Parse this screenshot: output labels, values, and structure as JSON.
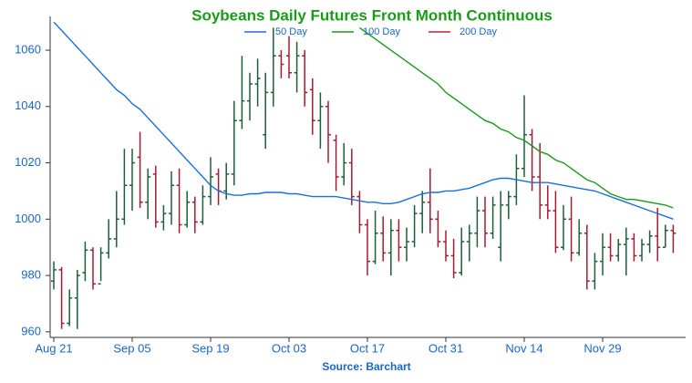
{
  "chart_data": {
    "type": "ohlc",
    "title": "Soybeans Daily Futures Front Month Continuous",
    "source": "Source: Barchart",
    "up_color": "#1e5e3a",
    "down_color": "#a51c30",
    "legend": "top",
    "grid": false,
    "categories": [
      "Aug 21",
      null,
      null,
      null,
      null,
      null,
      null,
      null,
      null,
      null,
      "Sep 05",
      null,
      null,
      null,
      null,
      null,
      null,
      null,
      null,
      null,
      "Sep 19",
      null,
      null,
      null,
      null,
      null,
      null,
      null,
      null,
      null,
      "Oct 03",
      null,
      null,
      null,
      null,
      null,
      null,
      null,
      null,
      null,
      "Oct 17",
      null,
      null,
      null,
      null,
      null,
      null,
      null,
      null,
      null,
      "Oct 31",
      null,
      null,
      null,
      null,
      null,
      null,
      null,
      null,
      null,
      "Nov 14",
      null,
      null,
      null,
      null,
      null,
      null,
      null,
      null,
      null,
      "Nov 29",
      null,
      null,
      null,
      null,
      null,
      null,
      null,
      null,
      null
    ],
    "open": [
      978,
      982,
      963,
      972,
      981,
      989,
      977,
      988,
      993,
      1000,
      1012,
      1022,
      1006,
      1016,
      999,
      1002,
      1012,
      998,
      1006,
      999,
      1008,
      1016,
      1010,
      1016,
      1035,
      1042,
      1048,
      1030,
      1045,
      1058,
      1058,
      1052,
      1058,
      1046,
      1035,
      1040,
      1028,
      1015,
      1020,
      1008,
      998,
      985,
      995,
      988,
      996,
      990,
      992,
      1002,
      1006,
      1000,
      992,
      987,
      981,
      992,
      995,
      1003,
      995,
      990,
      1005,
      1008,
      1018,
      1030,
      1015,
      1005,
      1003,
      990,
      1000,
      988,
      995,
      978,
      985,
      990,
      987,
      991,
      993,
      987,
      991,
      994,
      990,
      996
    ],
    "high": [
      985,
      983,
      975,
      982,
      992,
      990,
      990,
      1000,
      1010,
      1025,
      1025,
      1031,
      1018,
      1019,
      1005,
      1017,
      1018,
      1010,
      1008,
      1012,
      1022,
      1018,
      1020,
      1042,
      1058,
      1052,
      1057,
      1052,
      1068,
      1060,
      1065,
      1063,
      1060,
      1050,
      1045,
      1042,
      1030,
      1027,
      1025,
      1010,
      1000,
      1003,
      1001,
      1000,
      1000,
      997,
      1005,
      1010,
      1018,
      1003,
      996,
      993,
      997,
      998,
      1008,
      1008,
      1008,
      1010,
      1010,
      1023,
      1044,
      1032,
      1027,
      1012,
      1010,
      1005,
      1008,
      1000,
      998,
      988,
      995,
      995,
      993,
      997,
      995,
      993,
      996,
      1004,
      998,
      998
    ],
    "low": [
      975,
      961,
      962,
      961,
      978,
      975,
      978,
      986,
      990,
      998,
      1003,
      1004,
      1000,
      997,
      996,
      998,
      995,
      997,
      995,
      998,
      1005,
      1005,
      1007,
      1012,
      1032,
      1035,
      1040,
      1025,
      1040,
      1050,
      1050,
      1045,
      1040,
      1030,
      1025,
      1020,
      1010,
      1012,
      1005,
      995,
      980,
      984,
      985,
      980,
      985,
      985,
      990,
      995,
      995,
      990,
      985,
      979,
      980,
      985,
      990,
      990,
      993,
      985,
      1000,
      1005,
      1015,
      1010,
      1000,
      1000,
      988,
      989,
      985,
      987,
      975,
      975,
      980,
      985,
      985,
      980,
      985,
      985,
      988,
      985,
      990,
      988
    ],
    "close": [
      982,
      963,
      972,
      980,
      989,
      977,
      988,
      993,
      1000,
      1012,
      1020,
      1006,
      1015,
      999,
      1002,
      1012,
      998,
      1006,
      999,
      1008,
      1015,
      1010,
      1016,
      1035,
      1042,
      1048,
      1050,
      1045,
      1058,
      1055,
      1052,
      1058,
      1045,
      1035,
      1040,
      1030,
      1015,
      1020,
      1008,
      998,
      985,
      995,
      988,
      996,
      990,
      992,
      1002,
      1006,
      1000,
      992,
      987,
      981,
      992,
      995,
      1003,
      995,
      1005,
      1005,
      1008,
      1018,
      1030,
      1015,
      1005,
      1003,
      990,
      1000,
      988,
      995,
      978,
      985,
      990,
      987,
      991,
      993,
      987,
      991,
      994,
      990,
      996,
      995
    ],
    "series": [
      {
        "name": "50 Day",
        "color": "#1a6fe0",
        "values": [
          1070,
          1067,
          1064,
          1061,
          1058,
          1055,
          1052,
          1049,
          1046,
          1044,
          1041,
          1039,
          1036,
          1033,
          1030,
          1027,
          1024,
          1021,
          1018,
          1015,
          1012,
          1010,
          1009,
          1008.5,
          1008.5,
          1009,
          1009,
          1009.5,
          1009.5,
          1009.5,
          1009,
          1009,
          1008.5,
          1008,
          1008,
          1008,
          1008,
          1007.5,
          1007,
          1006.5,
          1006,
          1006,
          1005.5,
          1005.5,
          1006,
          1007,
          1008,
          1009,
          1009.5,
          1009.5,
          1010,
          1010,
          1010.5,
          1011,
          1012,
          1013,
          1014,
          1014.5,
          1014.5,
          1014,
          1013.5,
          1013,
          1013,
          1013,
          1012.5,
          1012,
          1011.5,
          1011,
          1010.5,
          1010,
          1009,
          1008,
          1007,
          1006,
          1005,
          1004,
          1003,
          1002,
          1001,
          1000
        ]
      },
      {
        "name": "100 Day",
        "color": "#1a9a1a",
        "values": [
          null,
          null,
          null,
          null,
          null,
          null,
          null,
          null,
          null,
          null,
          null,
          null,
          null,
          null,
          null,
          null,
          null,
          null,
          null,
          null,
          null,
          null,
          null,
          null,
          null,
          null,
          null,
          null,
          null,
          null,
          null,
          null,
          null,
          null,
          null,
          null,
          null,
          null,
          null,
          1068,
          1066,
          1064,
          1062,
          1060,
          1058,
          1056,
          1054,
          1052,
          1050,
          1048,
          1045,
          1043,
          1041,
          1039,
          1037,
          1035,
          1034,
          1032,
          1031,
          1029,
          1028,
          1026,
          1024,
          1023,
          1021,
          1020,
          1018,
          1016,
          1014,
          1013,
          1011,
          1009,
          1008,
          1007,
          1007,
          1006.5,
          1006,
          1005.5,
          1005,
          1004
        ]
      },
      {
        "name": "200 Day",
        "color": "#c0203a",
        "values": [
          null,
          null,
          null,
          null,
          null,
          null,
          null,
          null,
          null,
          null,
          null,
          null,
          null,
          null,
          null,
          null,
          null,
          null,
          null,
          null,
          null,
          null,
          null,
          null,
          null,
          null,
          null,
          null,
          null,
          null,
          null,
          null,
          null,
          null,
          null,
          null,
          null,
          null,
          null,
          null,
          null,
          null,
          null,
          null,
          null,
          null,
          null,
          null,
          null,
          null,
          null,
          null,
          null,
          null,
          null,
          null,
          null,
          null,
          null,
          null,
          null,
          null,
          null,
          null,
          null,
          null,
          null,
          null,
          null,
          null,
          null,
          null,
          null,
          null,
          null,
          null,
          null,
          null,
          null,
          null
        ]
      }
    ],
    "ylim": [
      958,
      1072
    ],
    "yticks": [
      960,
      980,
      1000,
      1020,
      1040,
      1060
    ]
  }
}
